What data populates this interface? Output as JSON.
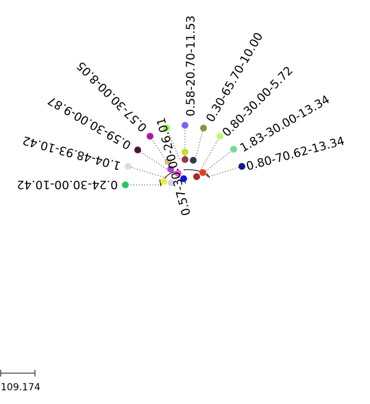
{
  "tree": {
    "leaves": [
      {
        "label": "0.24-30.00-10.42",
        "color": "#22c75f"
      },
      {
        "label": "1.04-48.93-10.42",
        "color": "#ecd9c6"
      },
      {
        "label": "0.59-30.00-9.87",
        "color": "#4a1438"
      },
      {
        "label": "0.57-30.00-8.05",
        "color": "#b5179e"
      },
      {
        "label": "0.57-30.00-26.01",
        "color": "#9af23a"
      },
      {
        "label": "0.58-20.70-11.53",
        "color": "#7c63f0"
      },
      {
        "label": "0.30-65.70-10.00",
        "color": "#7e9a3a"
      },
      {
        "label": "0.80-30.00-5.72",
        "color": "#c3f77a"
      },
      {
        "label": "1.83-30.00-13.34",
        "color": "#71dc8c"
      },
      {
        "label": "0.80-70.62-13.34",
        "color": "#141a80"
      }
    ],
    "internal_nodes": [
      {
        "color": "#f0ee3a"
      },
      {
        "color": "#d6cff0"
      },
      {
        "color": "#d0c07a"
      },
      {
        "color": "#b83ad6"
      },
      {
        "color": "#e05ad0"
      },
      {
        "color": "#0a12e0"
      },
      {
        "color": "#c8e02a"
      },
      {
        "color": "#9a3a3a"
      },
      {
        "color": "#2a3a5a"
      },
      {
        "color": "#a82828"
      },
      {
        "color": "#e0401a"
      }
    ]
  },
  "scale_bar": {
    "label": "109.174"
  }
}
